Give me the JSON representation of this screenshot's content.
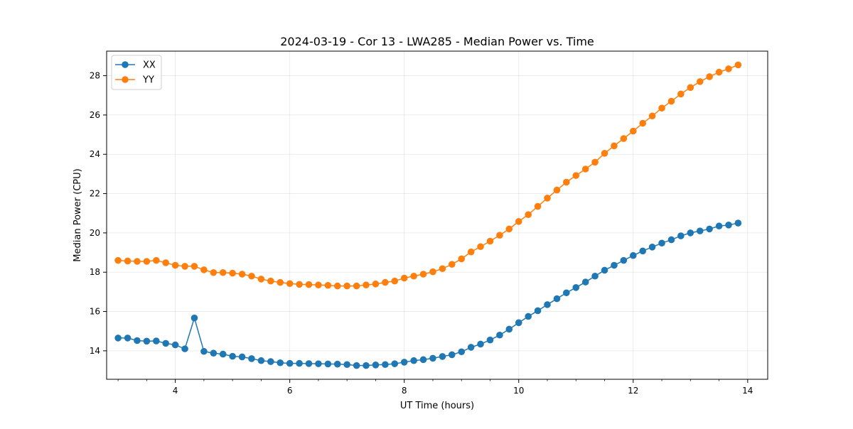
{
  "chart_data": {
    "type": "line",
    "title": "2024-03-19 - Cor 13 - LWA285 - Median Power vs. Time",
    "xlabel": "UT Time (hours)",
    "ylabel": "Median Power (CPU)",
    "xlim": [
      2.8,
      14.35
    ],
    "ylim": [
      12.55,
      29.25
    ],
    "x_major_ticks": [
      4,
      6,
      8,
      10,
      12,
      14
    ],
    "x_minor_step": 0.5,
    "y_major_ticks": [
      14,
      16,
      18,
      20,
      22,
      24,
      26,
      28
    ],
    "grid": true,
    "legend_position": "upper-left",
    "x": [
      3.0,
      3.167,
      3.333,
      3.5,
      3.667,
      3.833,
      4.0,
      4.167,
      4.333,
      4.5,
      4.667,
      4.833,
      5.0,
      5.167,
      5.333,
      5.5,
      5.667,
      5.833,
      6.0,
      6.167,
      6.333,
      6.5,
      6.667,
      6.833,
      7.0,
      7.167,
      7.333,
      7.5,
      7.667,
      7.833,
      8.0,
      8.167,
      8.333,
      8.5,
      8.667,
      8.833,
      9.0,
      9.167,
      9.333,
      9.5,
      9.667,
      9.833,
      10.0,
      10.167,
      10.333,
      10.5,
      10.667,
      10.833,
      11.0,
      11.167,
      11.333,
      11.5,
      11.667,
      11.833,
      12.0,
      12.167,
      12.333,
      12.5,
      12.667,
      12.833,
      13.0,
      13.167,
      13.333,
      13.5,
      13.667,
      13.833
    ],
    "series": [
      {
        "name": "XX",
        "color": "#1f77b4",
        "values": [
          14.65,
          14.65,
          14.52,
          14.49,
          14.5,
          14.38,
          14.3,
          14.1,
          15.67,
          13.97,
          13.88,
          13.83,
          13.72,
          13.69,
          13.6,
          13.5,
          13.45,
          13.39,
          13.36,
          13.36,
          13.35,
          13.34,
          13.33,
          13.32,
          13.3,
          13.25,
          13.25,
          13.28,
          13.3,
          13.34,
          13.42,
          13.5,
          13.55,
          13.62,
          13.71,
          13.8,
          13.95,
          14.18,
          14.34,
          14.55,
          14.8,
          15.1,
          15.43,
          15.75,
          16.04,
          16.35,
          16.65,
          16.95,
          17.22,
          17.5,
          17.8,
          18.1,
          18.35,
          18.6,
          18.85,
          19.08,
          19.28,
          19.48,
          19.65,
          19.85,
          20.0,
          20.1,
          20.2,
          20.35,
          20.4,
          20.5
        ]
      },
      {
        "name": "YY",
        "color": "#ff7f0e",
        "values": [
          18.6,
          18.57,
          18.55,
          18.55,
          18.6,
          18.48,
          18.35,
          18.3,
          18.3,
          18.12,
          17.98,
          17.98,
          17.95,
          17.9,
          17.8,
          17.65,
          17.55,
          17.48,
          17.42,
          17.38,
          17.37,
          17.35,
          17.33,
          17.3,
          17.3,
          17.3,
          17.35,
          17.4,
          17.48,
          17.55,
          17.7,
          17.8,
          17.9,
          18.02,
          18.18,
          18.4,
          18.68,
          19.03,
          19.3,
          19.58,
          19.88,
          20.2,
          20.58,
          20.93,
          21.35,
          21.77,
          22.18,
          22.58,
          22.92,
          23.25,
          23.6,
          24.05,
          24.43,
          24.8,
          25.18,
          25.58,
          25.95,
          26.35,
          26.7,
          27.07,
          27.4,
          27.7,
          27.95,
          28.18,
          28.35,
          28.55
        ]
      }
    ]
  }
}
